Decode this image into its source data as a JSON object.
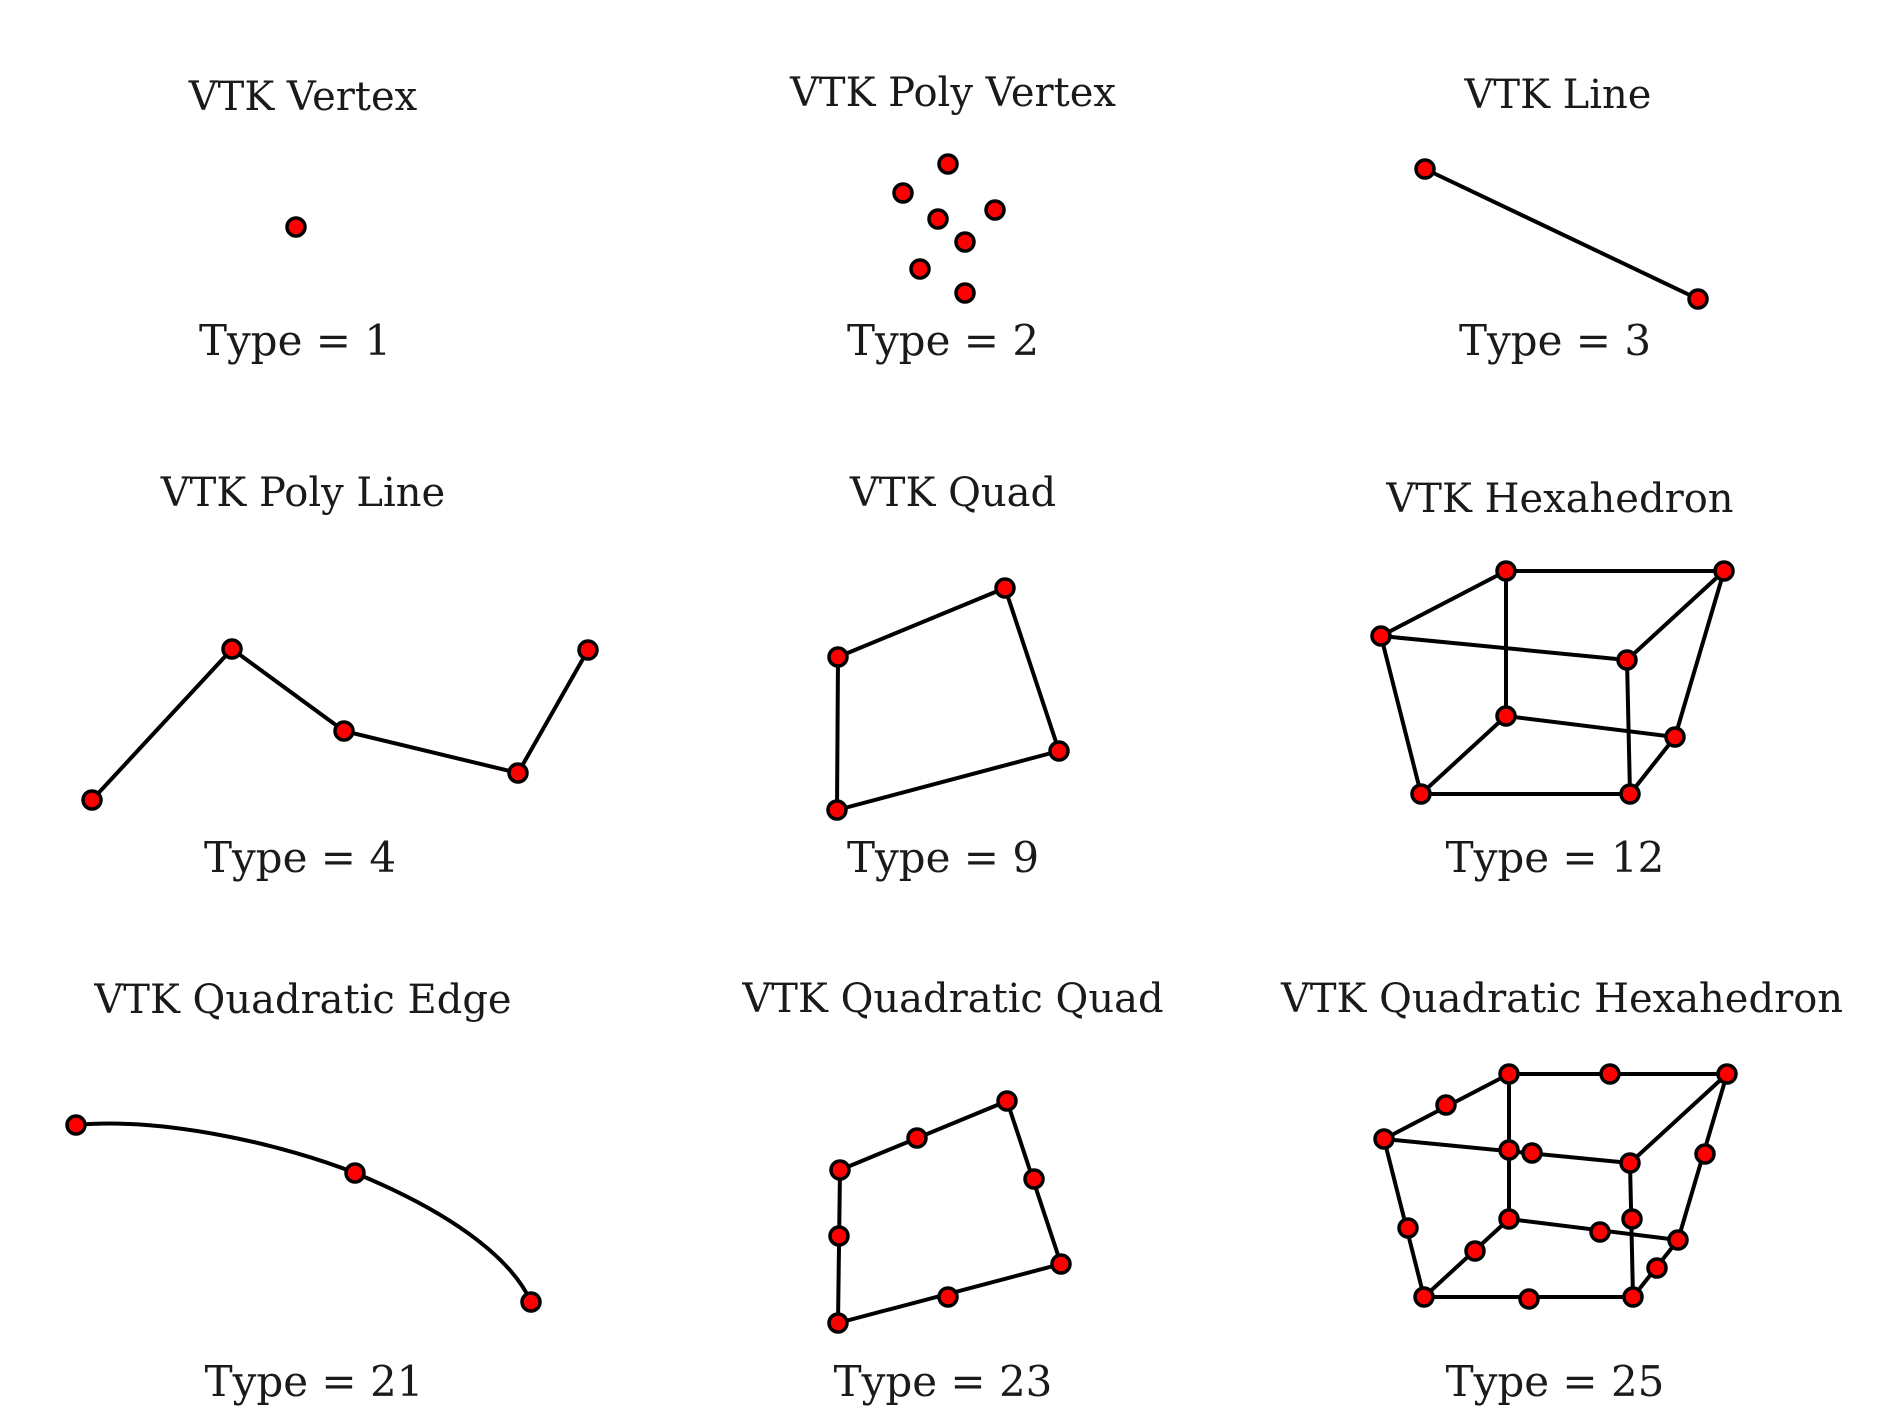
{
  "colors": {
    "node_fill": "#ff0000",
    "edge": "#000000",
    "text": "#1a1a1a"
  },
  "cells": [
    {
      "title": "VTK Vertex",
      "type_label": "Type = 1"
    },
    {
      "title": "VTK Poly Vertex",
      "type_label": "Type = 2"
    },
    {
      "title": "VTK Line",
      "type_label": "Type = 3"
    },
    {
      "title": "VTK Poly Line",
      "type_label": "Type = 4"
    },
    {
      "title": "VTK Quad",
      "type_label": "Type = 9"
    },
    {
      "title": "VTK Hexahedron",
      "type_label": "Type = 12"
    },
    {
      "title": "VTK Quadratic Edge",
      "type_label": "Type = 21"
    },
    {
      "title": "VTK Quadratic Quad",
      "type_label": "Type = 23"
    },
    {
      "title": "VTK Quadratic Hexahedron",
      "type_label": "Type = 25"
    }
  ]
}
